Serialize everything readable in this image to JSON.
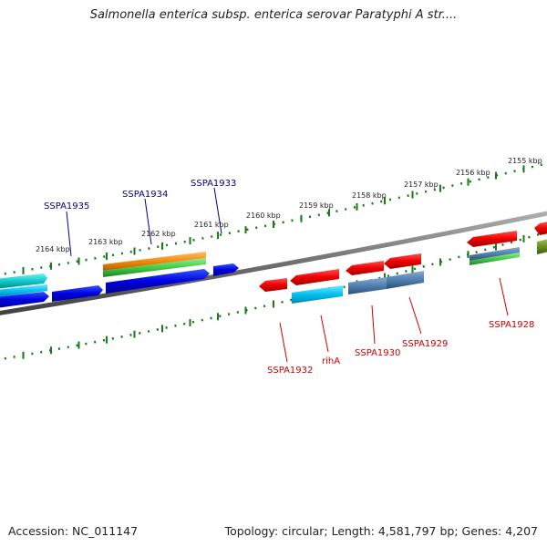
{
  "title": "Salmonella enterica subsp. enterica serovar Paratyphi A str....",
  "footer": {
    "accession": "Accession: NC_011147",
    "info": "Topology: circular; Length: 4,581,797 bp; Genes: 4,207"
  },
  "colors": {
    "backbone": "#808080",
    "ticks": "#1a7a1a",
    "label_upper": "#00008b",
    "label_lower": "#cc0000"
  },
  "scale_labels": [
    "2164 kbp",
    "2163 kbp",
    "2162 kbp",
    "2161 kbp",
    "2160 kbp",
    "2159 kbp",
    "2158 kbp",
    "2157 kbp",
    "2156 kbp",
    "2155 kbp"
  ],
  "genes_upper": [
    {
      "name": "SSPA1935",
      "color": "#00008b"
    },
    {
      "name": "SSPA1934",
      "color": "#00008b"
    },
    {
      "name": "SSPA1933",
      "color": "#00008b"
    }
  ],
  "genes_lower": [
    {
      "name": "SSPA1932",
      "color": "#cc0000"
    },
    {
      "name": "rihA",
      "color": "#cc0000"
    },
    {
      "name": "SSPA1930",
      "color": "#cc0000"
    },
    {
      "name": "SSPA1929",
      "color": "#cc0000"
    },
    {
      "name": "SSPA1928",
      "color": "#cc0000"
    }
  ]
}
